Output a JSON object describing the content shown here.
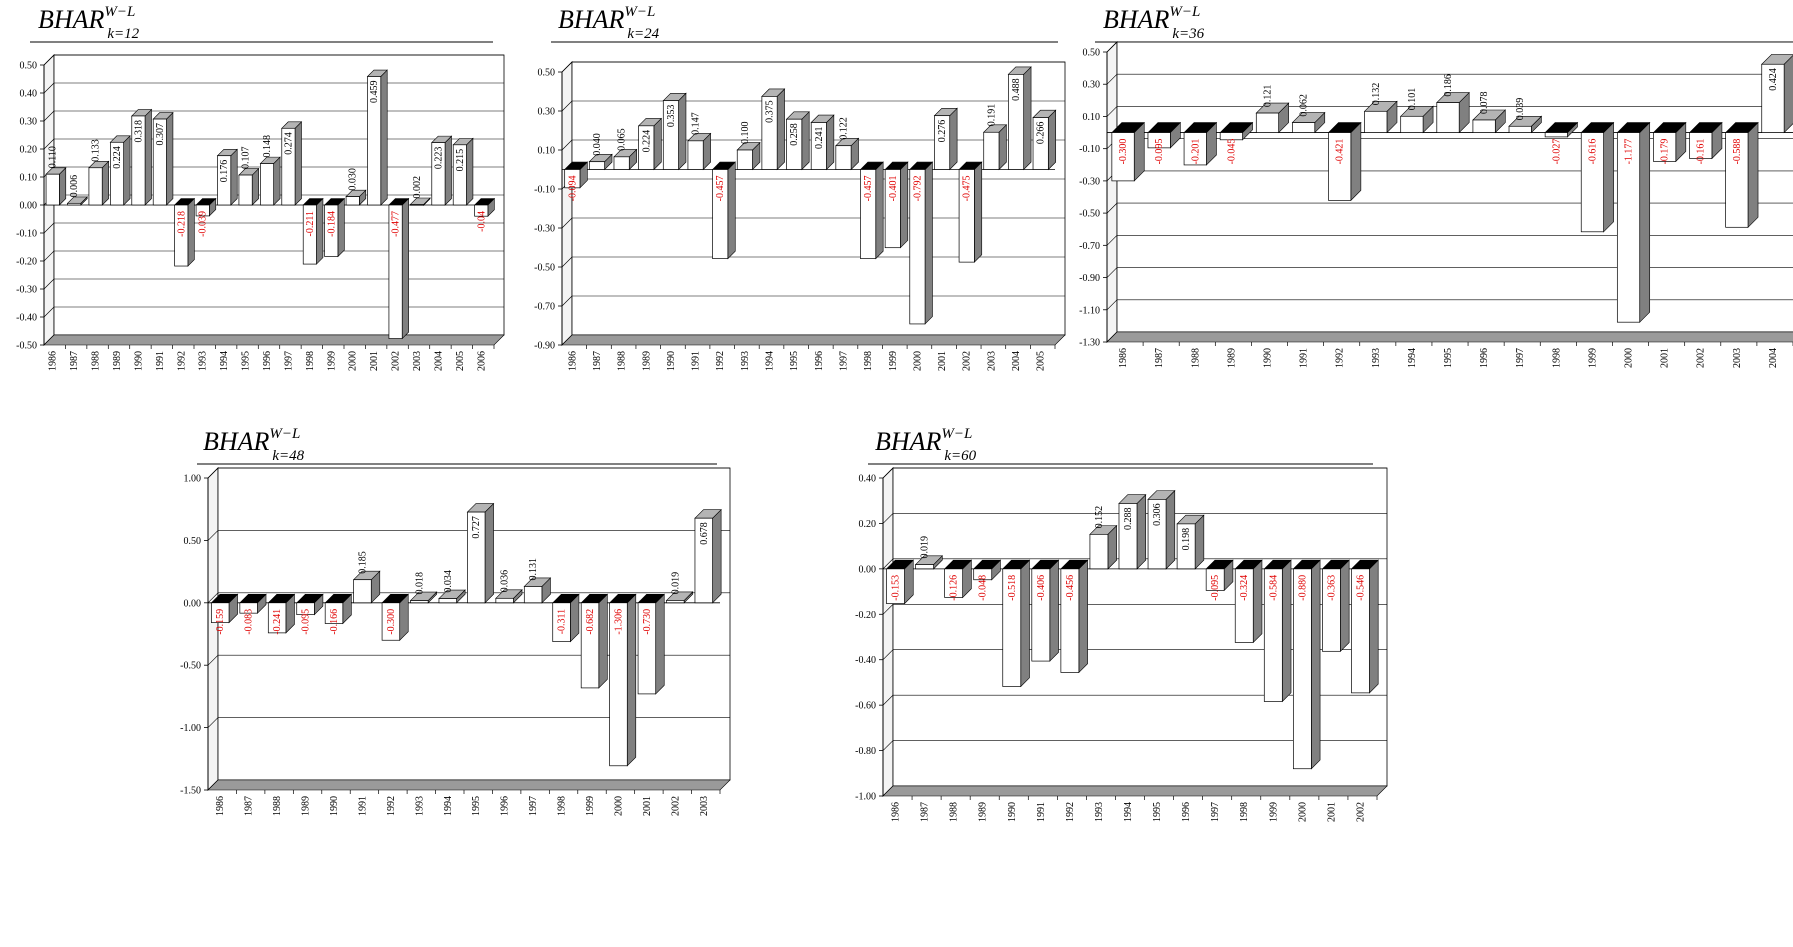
{
  "colors": {
    "positive_label": "#000000",
    "negative_label": "#e00000",
    "bar_face": "#ffffff",
    "bar_side": "#808080",
    "bar_top": "#b4b4b4",
    "floor": "#9a9a9a",
    "gridline": "#000000"
  },
  "chart_data": [
    {
      "type": "bar",
      "title_main": "BHAR",
      "title_sup": "W−L",
      "title_sub": "k=12",
      "ylim": [
        -0.5,
        0.5
      ],
      "yticks": [
        "0.50",
        "0.40",
        "0.30",
        "0.20",
        "0.10",
        "0.00",
        "-0.10",
        "-0.20",
        "-0.30",
        "-0.40",
        "-0.50"
      ],
      "categories": [
        "1986",
        "1987",
        "1988",
        "1989",
        "1990",
        "1991",
        "1992",
        "1993",
        "1994",
        "1995",
        "1996",
        "1997",
        "1998",
        "1999",
        "2000",
        "2001",
        "2002",
        "2003",
        "2004",
        "2005",
        "2006"
      ],
      "values": [
        0.11,
        0.006,
        0.133,
        0.224,
        0.318,
        0.307,
        -0.218,
        -0.039,
        0.176,
        0.107,
        0.148,
        0.274,
        -0.211,
        -0.184,
        0.03,
        0.459,
        -0.477,
        0.002,
        0.223,
        0.215,
        -0.04
      ],
      "labels": [
        "0.110",
        "0.006",
        "0.133",
        "0.224",
        "0.318",
        "0.307",
        "-0.218",
        "-0.039",
        "0.176",
        "0.107",
        "0.148",
        "0.274",
        "-0.211",
        "-0.184",
        "0.030",
        "0.459",
        "-0.477",
        "0.002",
        "0.223",
        "0.215",
        "-0.04"
      ],
      "grid": true
    },
    {
      "type": "bar",
      "title_main": "BHAR",
      "title_sup": "W−L",
      "title_sub": "k=24",
      "ylim": [
        -0.9,
        0.5
      ],
      "yticks": [
        "0.50",
        "0.30",
        "0.10",
        "-0.10",
        "-0.30",
        "-0.50",
        "-0.70",
        "-0.90"
      ],
      "categories": [
        "1986",
        "1987",
        "1988",
        "1989",
        "1990",
        "1991",
        "1992",
        "1993",
        "1994",
        "1995",
        "1996",
        "1997",
        "1998",
        "1999",
        "2000",
        "2001",
        "2002",
        "2003",
        "2004",
        "2005"
      ],
      "values": [
        -0.094,
        0.04,
        0.065,
        0.224,
        0.353,
        0.147,
        -0.457,
        0.1,
        0.375,
        0.258,
        0.241,
        0.122,
        -0.457,
        -0.401,
        -0.792,
        0.276,
        -0.475,
        0.191,
        0.488,
        0.266
      ],
      "labels": [
        "-0.094",
        "0.040",
        "0.065",
        "0.224",
        "0.353",
        "0.147",
        "-0.457",
        "0.100",
        "0.375",
        "0.258",
        "0.241",
        "0.122",
        "-0.457",
        "-0.401",
        "-0.792",
        "0.276",
        "-0.475",
        "0.191",
        "0.488",
        "0.266"
      ],
      "grid": true
    },
    {
      "type": "bar",
      "title_main": "BHAR",
      "title_sup": "W−L",
      "title_sub": "k=36",
      "ylim": [
        -1.3,
        0.5
      ],
      "yticks": [
        "0.50",
        "0.30",
        "0.10",
        "-0.10",
        "-0.30",
        "-0.50",
        "-0.70",
        "-0.90",
        "-1.10",
        "-1.30"
      ],
      "categories": [
        "1986",
        "1987",
        "1988",
        "1989",
        "1990",
        "1991",
        "1992",
        "1993",
        "1994",
        "1995",
        "1996",
        "1997",
        "1998",
        "1999",
        "2000",
        "2001",
        "2002",
        "2003",
        "2004"
      ],
      "values": [
        -0.3,
        -0.095,
        -0.201,
        -0.045,
        0.121,
        0.062,
        -0.421,
        0.132,
        0.101,
        0.186,
        0.078,
        0.039,
        -0.027,
        -0.616,
        -1.177,
        -0.179,
        -0.161,
        -0.588,
        0.424
      ],
      "labels": [
        "-0.300",
        "-0.095",
        "-0.201",
        "-0.045",
        "0.121",
        "0.062",
        "-0.421",
        "0.132",
        "0.101",
        "0.186",
        "0.078",
        "0.039",
        "-0.027",
        "-0.616",
        "-1.177",
        "-0.179",
        "-0.161",
        "-0.588",
        "0.424"
      ],
      "grid": true
    },
    {
      "type": "bar",
      "title_main": "BHAR",
      "title_sup": "W−L",
      "title_sub": "k=48",
      "ylim": [
        -1.5,
        1.0
      ],
      "yticks": [
        "1.00",
        "0.50",
        "0.00",
        "-0.50",
        "-1.00",
        "-1.50"
      ],
      "categories": [
        "1986",
        "1987",
        "1988",
        "1989",
        "1990",
        "1991",
        "1992",
        "1993",
        "1994",
        "1995",
        "1996",
        "1997",
        "1998",
        "1999",
        "2000",
        "2001",
        "2002",
        "2003"
      ],
      "values": [
        -0.159,
        -0.083,
        -0.241,
        -0.095,
        -0.166,
        0.185,
        -0.3,
        0.018,
        0.034,
        0.727,
        0.036,
        0.131,
        -0.311,
        -0.682,
        -1.306,
        -0.73,
        0.019,
        0.678
      ],
      "labels": [
        "-0.159",
        "-0.083",
        "-0.241",
        "-0.095",
        "-0.166",
        "0.185",
        "-0.300",
        "0.018",
        "0.034",
        "0.727",
        "0.036",
        "0.131",
        "-0.311",
        "-0.682",
        "-1.306",
        "-0.730",
        "0.019",
        "0.678"
      ],
      "grid": true
    },
    {
      "type": "bar",
      "title_main": "BHAR",
      "title_sup": "W−L",
      "title_sub": "k=60",
      "ylim": [
        -1.0,
        0.4
      ],
      "yticks": [
        "0.40",
        "0.20",
        "0.00",
        "-0.20",
        "-0.40",
        "-0.60",
        "-0.80",
        "-1.00"
      ],
      "categories": [
        "1986",
        "1987",
        "1988",
        "1989",
        "1990",
        "1991",
        "1992",
        "1993",
        "1994",
        "1995",
        "1996",
        "1997",
        "1998",
        "1999",
        "2000",
        "2001",
        "2002"
      ],
      "values": [
        -0.153,
        0.019,
        -0.126,
        -0.048,
        -0.518,
        -0.406,
        -0.456,
        0.152,
        0.288,
        0.306,
        0.198,
        -0.095,
        -0.324,
        -0.584,
        -0.88,
        -0.363,
        -0.546
      ],
      "labels": [
        "-0.153",
        "0.019",
        "-0.126",
        "-0.048",
        "-0.518",
        "-0.406",
        "-0.456",
        "0.152",
        "0.288",
        "0.306",
        "0.198",
        "-0.095",
        "-0.324",
        "-0.584",
        "-0.880",
        "-0.363",
        "-0.546"
      ],
      "grid": true
    }
  ]
}
